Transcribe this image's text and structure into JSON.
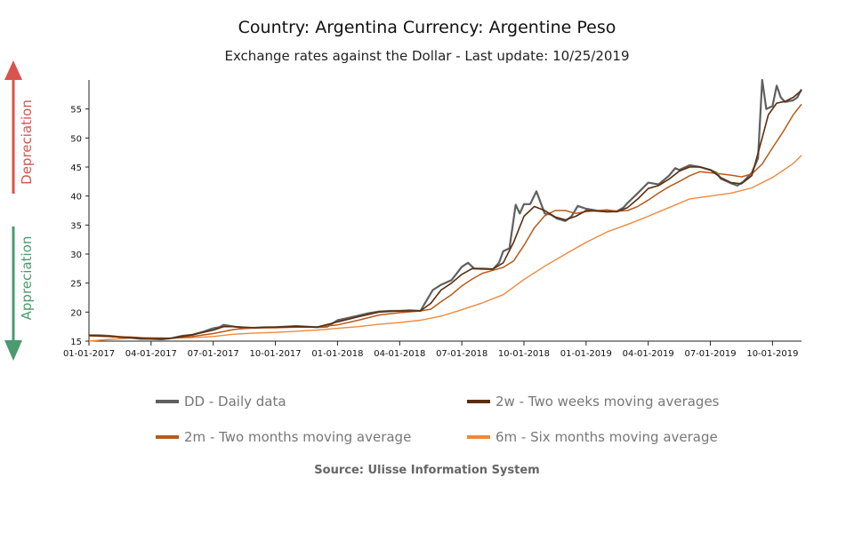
{
  "header": {
    "title": "Country: Argentina Currency: Argentine Peso",
    "subtitle": "Exchange rates against the Dollar - Last update: 10/25/2019"
  },
  "side_labels": {
    "depreciation": "Depreciation",
    "appreciation": "Appreciation",
    "depreciation_color": "#d9534f",
    "appreciation_color": "#4a9b6e"
  },
  "source": "Source: Ulisse Information System",
  "colors": {
    "dd": "#606060",
    "w2": "#5a2d0c",
    "m2": "#b85a1a",
    "m6": "#f0883a"
  },
  "chart_data": {
    "type": "line",
    "title": "Country: Argentina Currency: Argentine Peso",
    "subtitle": "Exchange rates against the Dollar - Last update: 10/25/2019",
    "xlabel": "",
    "ylabel": "",
    "x_range_months": [
      0,
      34.4
    ],
    "ylim": [
      15,
      60
    ],
    "y_ticks": [
      15,
      20,
      25,
      30,
      35,
      40,
      45,
      50,
      55
    ],
    "x_ticks": [
      {
        "label": "01-01-2017",
        "m": 0
      },
      {
        "label": "04-01-2017",
        "m": 3
      },
      {
        "label": "07-01-2017",
        "m": 6
      },
      {
        "label": "10-01-2017",
        "m": 9
      },
      {
        "label": "01-01-2018",
        "m": 12
      },
      {
        "label": "04-01-2018",
        "m": 15
      },
      {
        "label": "07-01-2018",
        "m": 18
      },
      {
        "label": "10-01-2018",
        "m": 21
      },
      {
        "label": "01-01-2019",
        "m": 24
      },
      {
        "label": "04-01-2019",
        "m": 27
      },
      {
        "label": "07-01-2019",
        "m": 30
      },
      {
        "label": "10-01-2019",
        "m": 33
      }
    ],
    "legend_position": "bottom",
    "series": [
      {
        "key": "dd",
        "name": "DD - Daily data",
        "points": [
          [
            0,
            16.0
          ],
          [
            0.5,
            16.0
          ],
          [
            1,
            15.9
          ],
          [
            1.5,
            15.7
          ],
          [
            2,
            15.6
          ],
          [
            2.5,
            15.4
          ],
          [
            3,
            15.4
          ],
          [
            3.5,
            15.3
          ],
          [
            4,
            15.5
          ],
          [
            4.5,
            15.9
          ],
          [
            5,
            16.1
          ],
          [
            5.5,
            16.6
          ],
          [
            6,
            17.2
          ],
          [
            6.3,
            17.4
          ],
          [
            6.5,
            17.8
          ],
          [
            7,
            17.5
          ],
          [
            7.5,
            17.3
          ],
          [
            8,
            17.3
          ],
          [
            8.5,
            17.4
          ],
          [
            9,
            17.4
          ],
          [
            9.5,
            17.5
          ],
          [
            10,
            17.6
          ],
          [
            10.5,
            17.5
          ],
          [
            11,
            17.4
          ],
          [
            11.5,
            17.5
          ],
          [
            12,
            18.6
          ],
          [
            12.5,
            19.0
          ],
          [
            13,
            19.4
          ],
          [
            13.5,
            19.8
          ],
          [
            14,
            20.1
          ],
          [
            14.5,
            20.2
          ],
          [
            15,
            20.2
          ],
          [
            15.5,
            20.3
          ],
          [
            16,
            20.2
          ],
          [
            16.3,
            22.0
          ],
          [
            16.6,
            23.8
          ],
          [
            17,
            24.7
          ],
          [
            17.5,
            25.5
          ],
          [
            18,
            27.8
          ],
          [
            18.3,
            28.5
          ],
          [
            18.6,
            27.5
          ],
          [
            19,
            27.5
          ],
          [
            19.5,
            27.4
          ],
          [
            19.8,
            28.5
          ],
          [
            20,
            30.5
          ],
          [
            20.3,
            31.0
          ],
          [
            20.6,
            38.5
          ],
          [
            20.8,
            37.0
          ],
          [
            21,
            38.6
          ],
          [
            21.3,
            38.6
          ],
          [
            21.6,
            40.8
          ],
          [
            22,
            37.0
          ],
          [
            22.3,
            36.8
          ],
          [
            22.6,
            36.1
          ],
          [
            23,
            35.7
          ],
          [
            23.3,
            36.5
          ],
          [
            23.6,
            38.3
          ],
          [
            24,
            37.8
          ],
          [
            24.5,
            37.5
          ],
          [
            25,
            37.3
          ],
          [
            25.5,
            37.4
          ],
          [
            25.8,
            38.0
          ],
          [
            26,
            38.8
          ],
          [
            26.5,
            40.5
          ],
          [
            27,
            42.3
          ],
          [
            27.5,
            42.0
          ],
          [
            28,
            43.5
          ],
          [
            28.3,
            44.8
          ],
          [
            28.5,
            44.5
          ],
          [
            29,
            45.3
          ],
          [
            29.5,
            45.0
          ],
          [
            30,
            44.5
          ],
          [
            30.3,
            44.0
          ],
          [
            30.5,
            43.0
          ],
          [
            31,
            42.2
          ],
          [
            31.3,
            41.8
          ],
          [
            31.6,
            42.5
          ],
          [
            32,
            44.0
          ],
          [
            32.3,
            46.5
          ],
          [
            32.5,
            60.0
          ],
          [
            32.7,
            55.0
          ],
          [
            33,
            55.5
          ],
          [
            33.2,
            59.0
          ],
          [
            33.4,
            57.0
          ],
          [
            33.6,
            56.2
          ],
          [
            34,
            56.5
          ],
          [
            34.2,
            57.0
          ],
          [
            34.4,
            58.4
          ]
        ]
      },
      {
        "key": "w2",
        "name": "2w - Two weeks moving averages",
        "points": [
          [
            0,
            16.0
          ],
          [
            1,
            15.8
          ],
          [
            2,
            15.6
          ],
          [
            3,
            15.4
          ],
          [
            4,
            15.5
          ],
          [
            5,
            16.1
          ],
          [
            6,
            16.9
          ],
          [
            6.5,
            17.5
          ],
          [
            7,
            17.5
          ],
          [
            8,
            17.3
          ],
          [
            9,
            17.4
          ],
          [
            10,
            17.5
          ],
          [
            11,
            17.4
          ],
          [
            12,
            18.3
          ],
          [
            13,
            19.2
          ],
          [
            14,
            20.0
          ],
          [
            15,
            20.2
          ],
          [
            16,
            20.2
          ],
          [
            16.5,
            21.5
          ],
          [
            17,
            23.8
          ],
          [
            17.5,
            25.0
          ],
          [
            18,
            26.5
          ],
          [
            18.5,
            27.5
          ],
          [
            19,
            27.4
          ],
          [
            19.5,
            27.4
          ],
          [
            20,
            28.5
          ],
          [
            20.5,
            32.0
          ],
          [
            21,
            36.5
          ],
          [
            21.5,
            38.2
          ],
          [
            22,
            37.5
          ],
          [
            22.5,
            36.4
          ],
          [
            23,
            35.9
          ],
          [
            23.5,
            36.5
          ],
          [
            24,
            37.5
          ],
          [
            25,
            37.3
          ],
          [
            25.5,
            37.3
          ],
          [
            26,
            38.0
          ],
          [
            26.5,
            39.5
          ],
          [
            27,
            41.3
          ],
          [
            27.5,
            41.8
          ],
          [
            28,
            42.9
          ],
          [
            28.5,
            44.3
          ],
          [
            29,
            45.0
          ],
          [
            29.5,
            45.0
          ],
          [
            30,
            44.5
          ],
          [
            30.5,
            43.2
          ],
          [
            31,
            42.3
          ],
          [
            31.5,
            42.1
          ],
          [
            32,
            43.5
          ],
          [
            32.5,
            50.0
          ],
          [
            32.8,
            54.0
          ],
          [
            33.2,
            56.0
          ],
          [
            33.6,
            56.3
          ],
          [
            34,
            57.0
          ],
          [
            34.4,
            58.2
          ]
        ]
      },
      {
        "key": "m2",
        "name": "2m - Two months moving average",
        "points": [
          [
            0,
            15.9
          ],
          [
            1,
            15.8
          ],
          [
            2,
            15.7
          ],
          [
            3,
            15.5
          ],
          [
            4,
            15.5
          ],
          [
            5,
            15.8
          ],
          [
            6,
            16.3
          ],
          [
            7,
            17.0
          ],
          [
            8,
            17.3
          ],
          [
            9,
            17.3
          ],
          [
            10,
            17.4
          ],
          [
            11,
            17.4
          ],
          [
            12,
            17.8
          ],
          [
            13,
            18.6
          ],
          [
            14,
            19.5
          ],
          [
            15,
            19.9
          ],
          [
            16,
            20.2
          ],
          [
            16.5,
            20.5
          ],
          [
            17,
            21.8
          ],
          [
            17.5,
            23.0
          ],
          [
            18,
            24.5
          ],
          [
            18.5,
            25.7
          ],
          [
            19,
            26.7
          ],
          [
            19.5,
            27.2
          ],
          [
            20,
            27.7
          ],
          [
            20.5,
            28.8
          ],
          [
            21,
            31.5
          ],
          [
            21.5,
            34.5
          ],
          [
            22,
            36.6
          ],
          [
            22.5,
            37.5
          ],
          [
            23,
            37.5
          ],
          [
            23.5,
            37.0
          ],
          [
            24,
            37.3
          ],
          [
            24.5,
            37.5
          ],
          [
            25,
            37.6
          ],
          [
            25.5,
            37.4
          ],
          [
            26,
            37.5
          ],
          [
            26.5,
            38.2
          ],
          [
            27,
            39.3
          ],
          [
            27.5,
            40.5
          ],
          [
            28,
            41.6
          ],
          [
            28.5,
            42.5
          ],
          [
            29,
            43.5
          ],
          [
            29.5,
            44.2
          ],
          [
            30,
            44.0
          ],
          [
            31,
            43.6
          ],
          [
            31.5,
            43.3
          ],
          [
            32,
            43.8
          ],
          [
            32.5,
            45.5
          ],
          [
            33,
            48.3
          ],
          [
            33.5,
            51.0
          ],
          [
            34,
            54.0
          ],
          [
            34.4,
            55.8
          ]
        ]
      },
      {
        "key": "m6",
        "name": "6m - Six months moving average",
        "points": [
          [
            0,
            15.0
          ],
          [
            1,
            15.3
          ],
          [
            2,
            15.5
          ],
          [
            3,
            15.6
          ],
          [
            4,
            15.5
          ],
          [
            5,
            15.6
          ],
          [
            6,
            15.8
          ],
          [
            7,
            16.2
          ],
          [
            8,
            16.4
          ],
          [
            9,
            16.5
          ],
          [
            10,
            16.7
          ],
          [
            11,
            16.9
          ],
          [
            12,
            17.2
          ],
          [
            13,
            17.5
          ],
          [
            14,
            17.9
          ],
          [
            15,
            18.2
          ],
          [
            16,
            18.6
          ],
          [
            17,
            19.3
          ],
          [
            18,
            20.4
          ],
          [
            19,
            21.6
          ],
          [
            20,
            23.0
          ],
          [
            21,
            25.6
          ],
          [
            22,
            27.9
          ],
          [
            23,
            30.0
          ],
          [
            24,
            32.0
          ],
          [
            25,
            33.8
          ],
          [
            26,
            35.1
          ],
          [
            27,
            36.5
          ],
          [
            28,
            38.0
          ],
          [
            29,
            39.5
          ],
          [
            30,
            40.0
          ],
          [
            31,
            40.5
          ],
          [
            32,
            41.4
          ],
          [
            33,
            43.2
          ],
          [
            34,
            45.6
          ],
          [
            34.4,
            47.0
          ]
        ]
      }
    ]
  }
}
